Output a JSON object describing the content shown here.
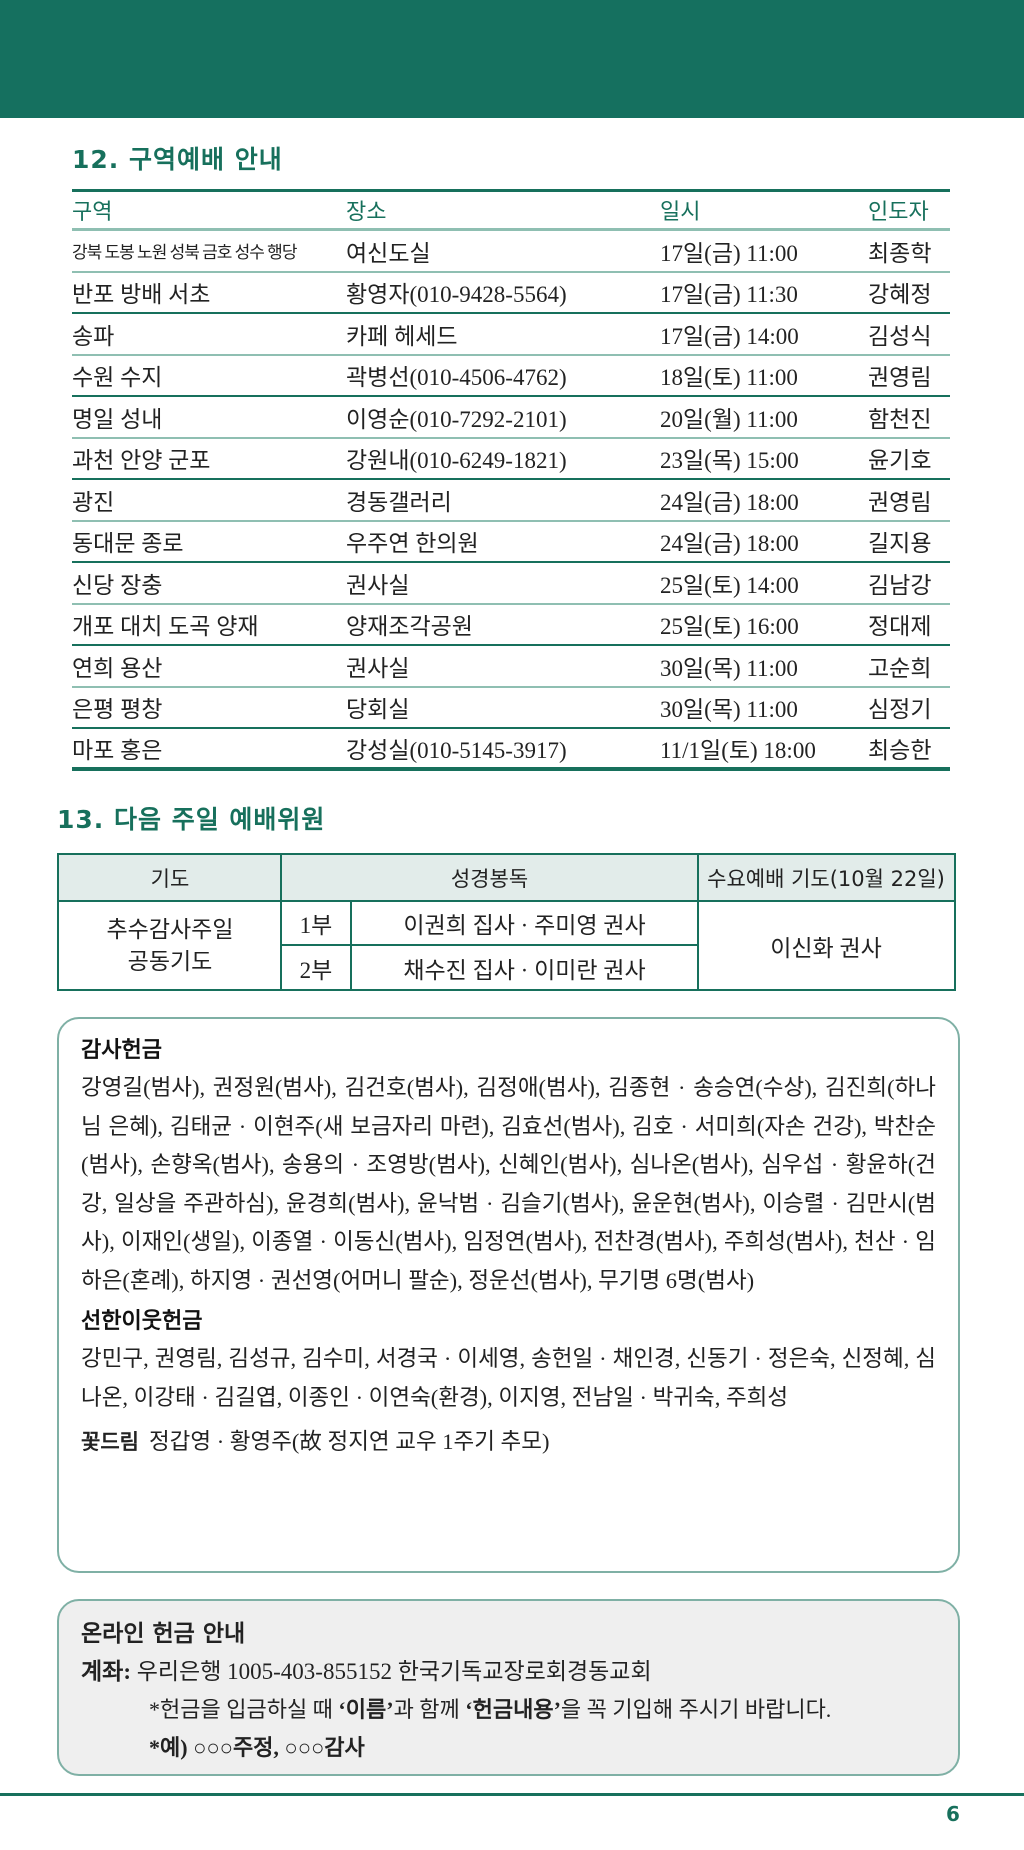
{
  "colors": {
    "brand_green": "#15705f",
    "table_line_light": "#8fbfb2",
    "box_border": "#7fb0a5",
    "header_cell_bg": "#e2ecea",
    "online_box_bg": "#efefef"
  },
  "section12": {
    "title": "12. 구역예배 안내",
    "headers": [
      "구역",
      "장소",
      "일시",
      "인도자"
    ],
    "rows": [
      [
        "강북 도봉 노원 성북 금호 성수 행당",
        "여신도실",
        "17일(금) 11:00",
        "최종학"
      ],
      [
        "반포 방배 서초",
        "황영자(010-9428-5564)",
        "17일(금) 11:30",
        "강혜정"
      ],
      [
        "송파",
        "카페 헤세드",
        "17일(금) 14:00",
        "김성식"
      ],
      [
        "수원 수지",
        "곽병선(010-4506-4762)",
        "18일(토) 11:00",
        "권영림"
      ],
      [
        "명일 성내",
        "이영순(010-7292-2101)",
        "20일(월) 11:00",
        "함천진"
      ],
      [
        "과천 안양 군포",
        "강원내(010-6249-1821)",
        "23일(목) 15:00",
        "윤기호"
      ],
      [
        "광진",
        "경동갤러리",
        "24일(금) 18:00",
        "권영림"
      ],
      [
        "동대문 종로",
        "우주연 한의원",
        "24일(금) 18:00",
        "길지용"
      ],
      [
        "신당 장충",
        "권사실",
        "25일(토) 14:00",
        "김남강"
      ],
      [
        "개포 대치 도곡 양재",
        "양재조각공원",
        "25일(토) 16:00",
        "정대제"
      ],
      [
        "연희 용산",
        "권사실",
        "30일(목) 11:00",
        "고순희"
      ],
      [
        "은평 평창",
        "당회실",
        "30일(목) 11:00",
        "심정기"
      ],
      [
        "마포 홍은",
        "강성실(010-5145-3917)",
        "11/1일(토) 18:00",
        "최승한"
      ]
    ]
  },
  "section13": {
    "title": "13. 다음 주일 예배위원",
    "headers": {
      "prayer": "기도",
      "reading": "성경봉독",
      "wednesday": "수요예배 기도(10월 22일)"
    },
    "prayer_line1": "추수감사주일",
    "prayer_line2": "공동기도",
    "services": [
      {
        "part": "1부",
        "readers": "이권희 집사 · 주미영 권사"
      },
      {
        "part": "2부",
        "readers": "채수진 집사 · 이미란 권사"
      }
    ],
    "wednesday_prayer": "이신화 권사"
  },
  "offerings": {
    "thanks_title": "감사헌금",
    "thanks_text": "강영길(범사), 권정원(범사), 김건호(범사), 김정애(범사), 김종현 · 송승연(수상), 김진희(하나님 은혜), 김태균 · 이현주(새 보금자리 마련), 김효선(범사), 김호 · 서미희(자손 건강), 박찬순(범사), 손향옥(범사), 송용의 · 조영방(범사), 신혜인(범사), 심나온(범사), 심우섭 · 황윤하(건강, 일상을 주관하심), 윤경희(범사), 윤낙범 · 김슬기(범사), 윤운현(범사), 이승렬 · 김만시(범사), 이재인(생일), 이종열 · 이동신(범사), 임정연(범사), 전찬경(범사), 주희성(범사), 천산 · 임하은(혼례), 하지영 · 권선영(어머니 팔순), 정운선(범사), 무기명 6명(범사)",
    "neighbor_title": "선한이웃헌금",
    "neighbor_text": "강민구, 권영림, 김성규, 김수미, 서경국 · 이세영, 송헌일 · 채인경, 신동기 · 정은숙, 신정혜, 심나온, 이강태 · 김길엽, 이종인 · 이연숙(환경), 이지영, 전남일 · 박귀숙, 주희성",
    "flower_title": "꽃드림",
    "flower_text": "정갑영 · 황영주(故 정지연 교우 1주기 추모)"
  },
  "online": {
    "title": "온라인 헌금 안내",
    "account_label": "계좌:",
    "account_text": "우리은행 1005-403-855152 한국기독교장로회경동교회",
    "note_prefix": "*헌금을 입금하실 때 ",
    "note_name": "‘이름’",
    "note_mid": "과 함께 ",
    "note_content": "‘헌금내용’",
    "note_suffix": "을 꼭 기입해 주시기 바랍니다.",
    "example_prefix": "*예)",
    "example_text": " ○○○주정, ○○○감사"
  },
  "page_number": "6"
}
